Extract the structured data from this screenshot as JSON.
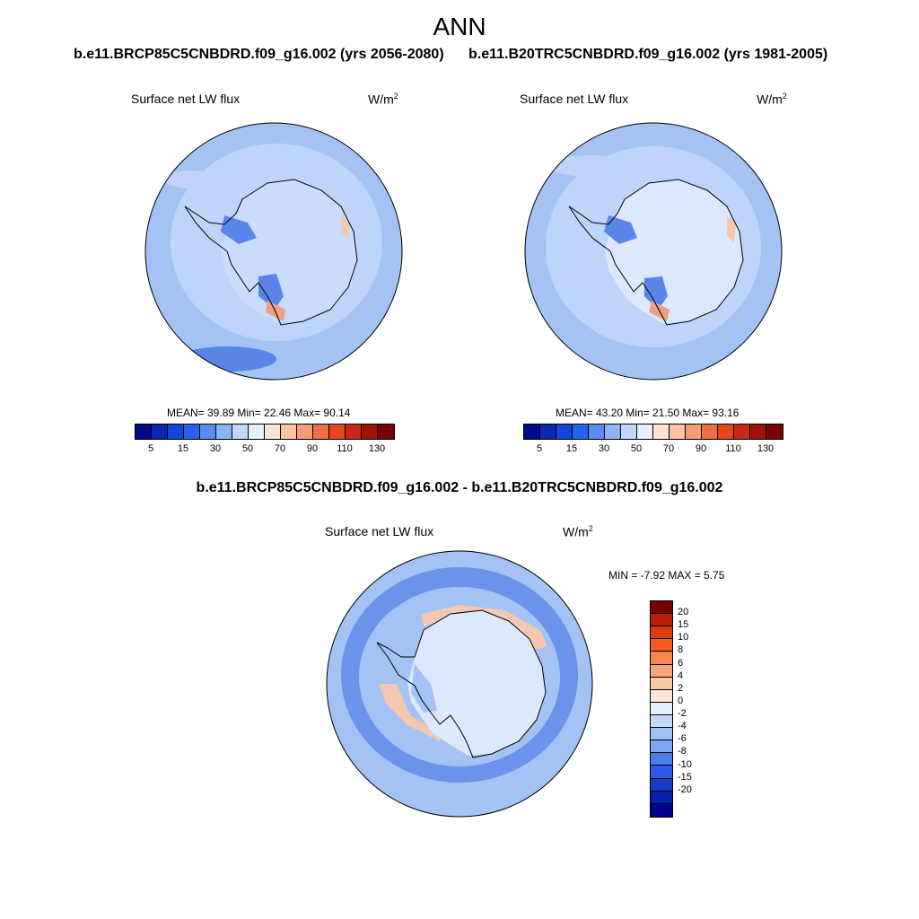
{
  "figure": {
    "title": "ANN",
    "left_case": "b.e11.BRCP85C5CNBDRD.f09_g16.002 (yrs 2056-2080)",
    "right_case": "b.e11.B20TRC5CNBDRD.f09_g16.002 (yrs 1981-2005)",
    "diff_case": "b.e11.BRCP85C5CNBDRD.f09_g16.002 - b.e11.B20TRC5CNBDRD.f09_g16.002"
  },
  "panels": [
    {
      "variable": "Surface net LW flux",
      "units": "W/m",
      "units_sup": "2",
      "stats": "MEAN=  39.89  Min=  22.46  Max=  90.14"
    },
    {
      "variable": "Surface net LW flux",
      "units": "W/m",
      "units_sup": "2",
      "stats": "MEAN=  43.20  Min=  21.50  Max=  93.16"
    },
    {
      "variable": "Surface net LW flux",
      "units": "W/m",
      "units_sup": "2",
      "stats": "MIN =  -7.92 MAX =   5.75"
    }
  ],
  "colorbar_abs": {
    "colors": [
      "#000a8c",
      "#0a28b4",
      "#1446dc",
      "#2864f0",
      "#5a8cf0",
      "#8cb4f5",
      "#bed7fa",
      "#e6f0ff",
      "#fde3d2",
      "#fac3a5",
      "#f59b78",
      "#f06e46",
      "#e6461e",
      "#c82814",
      "#a01408",
      "#780000"
    ],
    "tick_labels": [
      "5",
      "15",
      "30",
      "50",
      "70",
      "90",
      "110",
      "130"
    ]
  },
  "colorbar_diff": {
    "colors": [
      "#780000",
      "#b41e0a",
      "#dc3c0a",
      "#f55a1e",
      "#f5874b",
      "#f5a578",
      "#fac8a5",
      "#fde6d7",
      "#e6f0ff",
      "#c3d7fa",
      "#a0c3f5",
      "#7da5f0",
      "#4b7deb",
      "#285ae6",
      "#143cc8",
      "#0a1eaa",
      "#00008c"
    ],
    "tick_labels": [
      "20",
      "15",
      "10",
      "8",
      "6",
      "4",
      "2",
      "0",
      "-2",
      "-4",
      "-6",
      "-8",
      "-10",
      "-15",
      "-20"
    ]
  },
  "map_colors": {
    "ocean": "#a4c2f4",
    "ocean_light": "#bed4f8",
    "land": "#c9dcfb",
    "land_light": "#dce8fd",
    "dark_patch": "#5a85e8",
    "warm": "#f4c7b0",
    "warm_strong": "#ef9f7f",
    "diff_band": "#6b93ec",
    "coast": "#000000"
  }
}
